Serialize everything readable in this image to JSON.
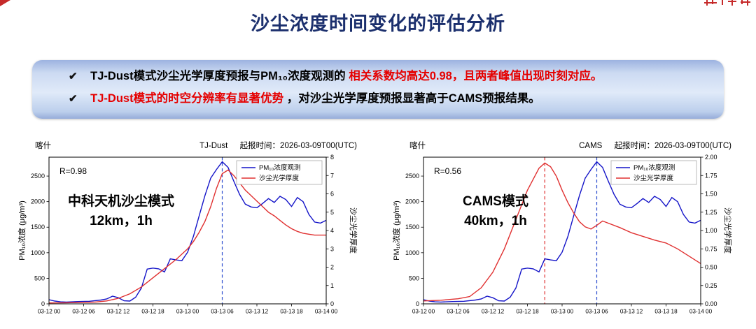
{
  "page": {
    "title": "沙尘浓度时间变化的评估分析"
  },
  "summary": {
    "bullets": [
      {
        "mark": "✔",
        "seg1": "TJ-Dust模式沙尘光学厚度预报与PM₁₀浓度观测的",
        "seg2": "相关系数均高达0.98，且两者峰值出现时刻对应。"
      },
      {
        "mark": "✔",
        "seg1": "TJ-Dust模式的时空分辨率有显著优势",
        "seg2": "，对沙尘光学厚度预报显著高于CAMS预报结果。"
      }
    ]
  },
  "colors": {
    "title_navy": "#1b2f6d",
    "emphasis_red": "#e50000",
    "pm10_blue": "#1414c8",
    "aod_red": "#e03030",
    "vline_blue": "#3050d0",
    "vline_red": "#e03030"
  },
  "chart_data": [
    {
      "type": "line",
      "station": "喀什",
      "model": "TJ-Dust",
      "init_time_label": "起报时间：2026-03-09T00(UTC)",
      "r_label": "R=0.98",
      "annotation_lines": [
        "中科天机沙尘模式",
        "12km，1h"
      ],
      "x_range": [
        0,
        48
      ],
      "x_ticks": {
        "positions": [
          0,
          6,
          12,
          18,
          24,
          30,
          36,
          42,
          48
        ],
        "labels": [
          "03-12 00",
          "03-12 06",
          "03-12 12",
          "03-12 18",
          "03-13 00",
          "03-13 06",
          "03-13 12",
          "03-13 18",
          "03-14 00"
        ]
      },
      "left_axis": {
        "label": "PM₁₀浓度 (μg/m³)",
        "lim": [
          0,
          2870
        ],
        "tick_values": [
          0,
          500,
          1000,
          1500,
          2000,
          2500
        ],
        "tick_labels": [
          "0",
          "500",
          "1000",
          "1500",
          "2000",
          "2500"
        ]
      },
      "right_axis": {
        "label": "沙尘光学厚度",
        "lim": [
          0,
          8
        ],
        "tick_values": [
          0,
          1,
          2,
          3,
          4,
          5,
          6,
          7,
          8
        ],
        "tick_labels": [
          "0",
          "1",
          "2",
          "3",
          "4",
          "5",
          "6",
          "7",
          "8"
        ]
      },
      "vlines": [
        {
          "x": 30,
          "color": "#3050d0"
        }
      ],
      "series": [
        {
          "name": "PM₁₀浓度观测",
          "axis": "left",
          "color": "#1414c8",
          "points": [
            [
              0,
              80
            ],
            [
              1,
              55
            ],
            [
              2,
              40
            ],
            [
              3,
              35
            ],
            [
              5,
              45
            ],
            [
              7,
              50
            ],
            [
              9,
              75
            ],
            [
              10,
              95
            ],
            [
              11,
              150
            ],
            [
              12,
              120
            ],
            [
              13,
              60
            ],
            [
              14,
              55
            ],
            [
              15,
              130
            ],
            [
              16,
              310
            ],
            [
              17,
              680
            ],
            [
              18,
              700
            ],
            [
              19,
              685
            ],
            [
              20,
              625
            ],
            [
              21,
              880
            ],
            [
              22,
              860
            ],
            [
              23,
              845
            ],
            [
              24,
              1010
            ],
            [
              25,
              1320
            ],
            [
              26,
              1720
            ],
            [
              27,
              2120
            ],
            [
              28,
              2460
            ],
            [
              29,
              2630
            ],
            [
              30,
              2780
            ],
            [
              31,
              2670
            ],
            [
              32,
              2400
            ],
            [
              33,
              2140
            ],
            [
              34,
              1950
            ],
            [
              35,
              1895
            ],
            [
              36,
              1880
            ],
            [
              37,
              1965
            ],
            [
              38,
              2060
            ],
            [
              39,
              1985
            ],
            [
              40,
              2105
            ],
            [
              41,
              2040
            ],
            [
              42,
              1905
            ],
            [
              43,
              2080
            ],
            [
              44,
              2000
            ],
            [
              45,
              1750
            ],
            [
              46,
              1600
            ],
            [
              47,
              1580
            ],
            [
              48,
              1635
            ]
          ]
        },
        {
          "name": "沙尘光学厚度",
          "axis": "right",
          "color": "#e03030",
          "points": [
            [
              0,
              0.05
            ],
            [
              3,
              0.06
            ],
            [
              6,
              0.08
            ],
            [
              8,
              0.1
            ],
            [
              10,
              0.16
            ],
            [
              12,
              0.3
            ],
            [
              14,
              0.55
            ],
            [
              16,
              0.92
            ],
            [
              18,
              1.42
            ],
            [
              20,
              1.92
            ],
            [
              22,
              2.42
            ],
            [
              24,
              3.0
            ],
            [
              25,
              3.4
            ],
            [
              26,
              3.9
            ],
            [
              27,
              4.5
            ],
            [
              28,
              5.3
            ],
            [
              29,
              6.3
            ],
            [
              30,
              7.1
            ],
            [
              31,
              7.3
            ],
            [
              32,
              7.0
            ],
            [
              33,
              6.6
            ],
            [
              34,
              6.2
            ],
            [
              35,
              5.9
            ],
            [
              36,
              5.6
            ],
            [
              37,
              5.3
            ],
            [
              38,
              5.0
            ],
            [
              39,
              4.8
            ],
            [
              40,
              4.55
            ],
            [
              41,
              4.3
            ],
            [
              42,
              4.1
            ],
            [
              43,
              3.95
            ],
            [
              44,
              3.85
            ],
            [
              45,
              3.8
            ],
            [
              46,
              3.75
            ],
            [
              47,
              3.75
            ],
            [
              48,
              3.75
            ]
          ]
        }
      ]
    },
    {
      "type": "line",
      "station": "喀什",
      "model": "CAMS",
      "init_time_label": "起报时间：2026-03-09T00(UTC)",
      "r_label": "R=0.56",
      "annotation_lines": [
        "CAMS模式",
        "40km，1h"
      ],
      "x_range": [
        0,
        48
      ],
      "x_ticks": {
        "positions": [
          0,
          6,
          12,
          18,
          24,
          30,
          36,
          42,
          48
        ],
        "labels": [
          "03-12 00",
          "03-12 06",
          "03-12 12",
          "03-12 18",
          "03-13 00",
          "03-13 06",
          "03-13 12",
          "03-13 18",
          "03-14 00"
        ]
      },
      "left_axis": {
        "label": "PM₁₀浓度 (μg/m³)",
        "lim": [
          0,
          2870
        ],
        "tick_values": [
          0,
          500,
          1000,
          1500,
          2000,
          2500
        ],
        "tick_labels": [
          "0",
          "500",
          "1000",
          "1500",
          "2000",
          "2500"
        ]
      },
      "right_axis": {
        "label": "沙尘光学厚度",
        "lim": [
          0,
          2
        ],
        "tick_values": [
          0,
          0.25,
          0.5,
          0.75,
          1,
          1.25,
          1.5,
          1.75,
          2
        ],
        "tick_labels": [
          "0.00",
          "0.25",
          "0.50",
          "0.75",
          "1.00",
          "1.25",
          "1.50",
          "1.75",
          "2.00"
        ]
      },
      "vlines": [
        {
          "x": 21,
          "color": "#e03030"
        },
        {
          "x": 30,
          "color": "#3050d0"
        }
      ],
      "series": [
        {
          "name": "PM₁₀浓度观测",
          "axis": "left",
          "color": "#1414c8",
          "points": [
            [
              0,
              80
            ],
            [
              1,
              55
            ],
            [
              2,
              40
            ],
            [
              3,
              35
            ],
            [
              5,
              45
            ],
            [
              7,
              50
            ],
            [
              9,
              75
            ],
            [
              10,
              95
            ],
            [
              11,
              150
            ],
            [
              12,
              120
            ],
            [
              13,
              60
            ],
            [
              14,
              55
            ],
            [
              15,
              130
            ],
            [
              16,
              310
            ],
            [
              17,
              680
            ],
            [
              18,
              700
            ],
            [
              19,
              685
            ],
            [
              20,
              625
            ],
            [
              21,
              880
            ],
            [
              22,
              860
            ],
            [
              23,
              845
            ],
            [
              24,
              1010
            ],
            [
              25,
              1320
            ],
            [
              26,
              1720
            ],
            [
              27,
              2120
            ],
            [
              28,
              2460
            ],
            [
              29,
              2630
            ],
            [
              30,
              2780
            ],
            [
              31,
              2670
            ],
            [
              32,
              2400
            ],
            [
              33,
              2140
            ],
            [
              34,
              1950
            ],
            [
              35,
              1895
            ],
            [
              36,
              1880
            ],
            [
              37,
              1965
            ],
            [
              38,
              2060
            ],
            [
              39,
              1985
            ],
            [
              40,
              2105
            ],
            [
              41,
              2040
            ],
            [
              42,
              1905
            ],
            [
              43,
              2080
            ],
            [
              44,
              2000
            ],
            [
              45,
              1750
            ],
            [
              46,
              1600
            ],
            [
              47,
              1580
            ],
            [
              48,
              1635
            ]
          ]
        },
        {
          "name": "沙尘光学厚度",
          "axis": "right",
          "color": "#e03030",
          "points": [
            [
              0,
              0.04
            ],
            [
              3,
              0.05
            ],
            [
              6,
              0.07
            ],
            [
              8,
              0.1
            ],
            [
              10,
              0.22
            ],
            [
              12,
              0.43
            ],
            [
              14,
              0.75
            ],
            [
              16,
              1.15
            ],
            [
              18,
              1.55
            ],
            [
              20,
              1.85
            ],
            [
              21,
              1.92
            ],
            [
              22,
              1.87
            ],
            [
              23,
              1.74
            ],
            [
              24,
              1.55
            ],
            [
              25,
              1.38
            ],
            [
              26,
              1.24
            ],
            [
              27,
              1.12
            ],
            [
              28,
              1.05
            ],
            [
              29,
              1.02
            ],
            [
              30,
              1.07
            ],
            [
              31,
              1.13
            ],
            [
              32,
              1.1
            ],
            [
              34,
              1.04
            ],
            [
              36,
              0.97
            ],
            [
              38,
              0.92
            ],
            [
              40,
              0.87
            ],
            [
              42,
              0.83
            ],
            [
              44,
              0.75
            ],
            [
              46,
              0.65
            ],
            [
              48,
              0.55
            ]
          ]
        }
      ]
    }
  ]
}
